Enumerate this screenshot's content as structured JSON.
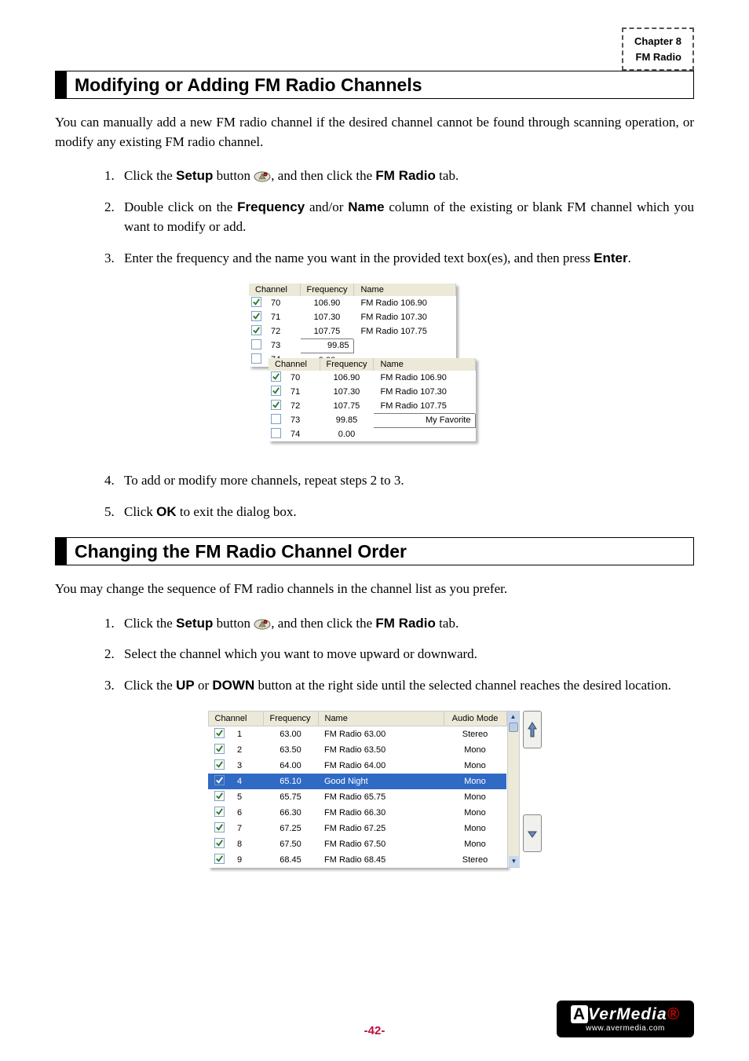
{
  "header": {
    "chapter": "Chapter 8",
    "section": "FM Radio"
  },
  "section1": {
    "title": "Modifying or Adding FM Radio Channels",
    "intro": "You can manually add a new FM radio channel if the desired channel cannot be found through scanning operation, or modify any existing FM radio channel.",
    "steps": {
      "s1_a": "Click the ",
      "s1_b": "Setup",
      "s1_c": " button ",
      "s1_d": ", and then click the ",
      "s1_e": "FM Radio",
      "s1_f": " tab.",
      "s2_a": "Double click on the ",
      "s2_b": "Frequency",
      "s2_c": " and/or ",
      "s2_d": "Name",
      "s2_e": " column of the existing or blank FM channel which you want to modify or add.",
      "s3_a": "Enter the frequency and the name you want in the provided text box(es), and then press ",
      "s3_b": "Enter",
      "s3_c": ".",
      "s4": "To add or modify more channels, repeat steps 2 to 3.",
      "s5_a": "Click ",
      "s5_b": "OK",
      "s5_c": " to exit the dialog box."
    },
    "table1": {
      "headers": {
        "c1": "Channel",
        "c2": "Frequency",
        "c3": "Name"
      },
      "rows": [
        {
          "checked": true,
          "ch": "70",
          "freq": "106.90",
          "name": "FM Radio 106.90"
        },
        {
          "checked": true,
          "ch": "71",
          "freq": "107.30",
          "name": "FM Radio 107.30"
        },
        {
          "checked": true,
          "ch": "72",
          "freq": "107.75",
          "name": "FM Radio 107.75"
        },
        {
          "checked": false,
          "ch": "73",
          "freq": "99.85",
          "name": "",
          "editing": true
        },
        {
          "checked": false,
          "ch": "74",
          "freq": "0.00",
          "name": ""
        }
      ]
    },
    "table2": {
      "headers": {
        "c1": "Channel",
        "c2": "Frequency",
        "c3": "Name"
      },
      "rows": [
        {
          "checked": true,
          "ch": "70",
          "freq": "106.90",
          "name": "FM Radio 106.90"
        },
        {
          "checked": true,
          "ch": "71",
          "freq": "107.30",
          "name": "FM Radio 107.30"
        },
        {
          "checked": true,
          "ch": "72",
          "freq": "107.75",
          "name": "FM Radio 107.75"
        },
        {
          "checked": false,
          "ch": "73",
          "freq": "99.85",
          "name": "My Favorite",
          "editing": true
        },
        {
          "checked": false,
          "ch": "74",
          "freq": "0.00",
          "name": ""
        }
      ]
    }
  },
  "section2": {
    "title": "Changing the FM Radio Channel Order",
    "intro": "You may change the sequence of FM radio channels in the channel list as you prefer.",
    "steps": {
      "s1_a": "Click the ",
      "s1_b": "Setup",
      "s1_c": " button ",
      "s1_d": ", and then click the ",
      "s1_e": "FM Radio",
      "s1_f": " tab.",
      "s2": "Select the channel which you want to move upward or downward.",
      "s3_a": "Click the ",
      "s3_b": "UP",
      "s3_c": " or ",
      "s3_d": "DOWN",
      "s3_e": " button at the right side until the selected channel reaches the desired location."
    },
    "bigtable": {
      "headers": {
        "c1": "Channel",
        "c2": "Frequency",
        "c3": "Name",
        "c4": "Audio Mode"
      },
      "rows": [
        {
          "sel": false,
          "checked": true,
          "ch": "1",
          "freq": "63.00",
          "name": "FM Radio 63.00",
          "mode": "Stereo"
        },
        {
          "sel": false,
          "checked": true,
          "ch": "2",
          "freq": "63.50",
          "name": "FM Radio 63.50",
          "mode": "Mono"
        },
        {
          "sel": false,
          "checked": true,
          "ch": "3",
          "freq": "64.00",
          "name": "FM Radio 64.00",
          "mode": "Mono"
        },
        {
          "sel": true,
          "checked": true,
          "ch": "4",
          "freq": "65.10",
          "name": "Good Night",
          "mode": "Mono"
        },
        {
          "sel": false,
          "checked": true,
          "ch": "5",
          "freq": "65.75",
          "name": "FM Radio 65.75",
          "mode": "Mono"
        },
        {
          "sel": false,
          "checked": true,
          "ch": "6",
          "freq": "66.30",
          "name": "FM Radio 66.30",
          "mode": "Mono"
        },
        {
          "sel": false,
          "checked": true,
          "ch": "7",
          "freq": "67.25",
          "name": "FM Radio 67.25",
          "mode": "Mono"
        },
        {
          "sel": false,
          "checked": true,
          "ch": "8",
          "freq": "67.50",
          "name": "FM Radio 67.50",
          "mode": "Mono"
        },
        {
          "sel": false,
          "checked": true,
          "ch": "9",
          "freq": "68.45",
          "name": "FM Radio 68.45",
          "mode": "Stereo"
        }
      ]
    }
  },
  "footer": {
    "page": "-42-",
    "logo_main": "AVerMedia",
    "logo_sub": "www.avermedia.com"
  },
  "colors": {
    "page_num": "#be0d3e",
    "selected_row_bg": "#316ac5",
    "header_bg": "#ece9d8"
  }
}
